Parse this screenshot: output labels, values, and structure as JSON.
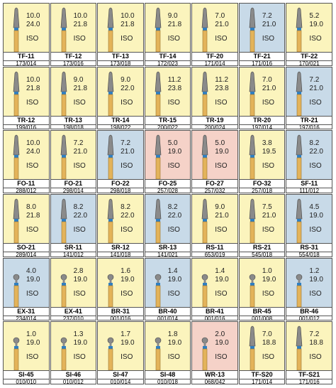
{
  "iso_label": "ISO",
  "rows": [
    [
      {
        "name": "TF-11",
        "d1": "10.0",
        "d2": "24.0",
        "code": "173/014",
        "bg": "yellow"
      },
      {
        "name": "TF-12",
        "d1": "10.0",
        "d2": "21.8",
        "code": "173/016",
        "bg": "yellow"
      },
      {
        "name": "TF-13",
        "d1": "10.0",
        "d2": "21.8",
        "code": "173/018",
        "bg": "yellow"
      },
      {
        "name": "TF-14",
        "d1": "9.0",
        "d2": "21.8",
        "code": "172/023",
        "bg": "yellow"
      },
      {
        "name": "TF-20",
        "d1": "7.0",
        "d2": "21.0",
        "code": "171/014",
        "bg": "yellow"
      },
      {
        "name": "TF-21",
        "d1": "7.2",
        "d2": "21.0",
        "code": "171/016",
        "bg": "blue"
      },
      {
        "name": "TF-22",
        "d1": "5.2",
        "d2": "19.0",
        "code": "170/021",
        "bg": "yellow"
      }
    ],
    [
      {
        "name": "TR-12",
        "d1": "10.0",
        "d2": "21.8",
        "code": "199/016",
        "bg": "yellow"
      },
      {
        "name": "TR-13",
        "d1": "9.0",
        "d2": "21.8",
        "code": "198/018",
        "bg": "yellow"
      },
      {
        "name": "TR-14",
        "d1": "9.0",
        "d2": "22.0",
        "code": "198/022",
        "bg": "yellow"
      },
      {
        "name": "TR-15",
        "d1": "11.2",
        "d2": "23.8",
        "code": "200/022",
        "bg": "yellow"
      },
      {
        "name": "TR-19",
        "d1": "11.2",
        "d2": "23.8",
        "code": "200/024",
        "bg": "yellow"
      },
      {
        "name": "TR-20",
        "d1": "7.0",
        "d2": "21.0",
        "code": "197/014",
        "bg": "yellow"
      },
      {
        "name": "TR-21",
        "d1": "7.2",
        "d2": "21.0",
        "code": "197/016",
        "bg": "blue"
      }
    ],
    [
      {
        "name": "FO-11",
        "d1": "10.0",
        "d2": "24.0",
        "code": "288/012",
        "bg": "yellow"
      },
      {
        "name": "FO-21",
        "d1": "7.2",
        "d2": "21.0",
        "code": "298/014",
        "bg": "yellow"
      },
      {
        "name": "FO-22",
        "d1": "7.2",
        "d2": "21.0",
        "code": "298/018",
        "bg": "blue"
      },
      {
        "name": "FO-25",
        "d1": "5.0",
        "d2": "19.0",
        "code": "257/028",
        "bg": "pink"
      },
      {
        "name": "FO-27",
        "d1": "5.0",
        "d2": "19.0",
        "code": "257/032",
        "bg": "pink"
      },
      {
        "name": "FO-32",
        "d1": "3.8",
        "d2": "19.5",
        "code": "257/018",
        "bg": "yellow"
      },
      {
        "name": "SF-11",
        "d1": "8.2",
        "d2": "22.0",
        "code": "111/012",
        "bg": "blue"
      }
    ],
    [
      {
        "name": "SO-21",
        "d1": "8.0",
        "d2": "21.8",
        "code": "289/014",
        "bg": "yellow"
      },
      {
        "name": "SR-11",
        "d1": "8.2",
        "d2": "22.0",
        "code": "141/012",
        "bg": "blue"
      },
      {
        "name": "SR-12",
        "d1": "8.2",
        "d2": "22.0",
        "code": "141/018",
        "bg": "yellow"
      },
      {
        "name": "SR-13",
        "d1": "8.2",
        "d2": "22.0",
        "code": "141/021",
        "bg": "blue"
      },
      {
        "name": "RS-11",
        "d1": "9.0",
        "d2": "21.0",
        "code": "653/019",
        "bg": "yellow"
      },
      {
        "name": "RS-21",
        "d1": "7.5",
        "d2": "21.0",
        "code": "545/018",
        "bg": "yellow"
      },
      {
        "name": "RS-31",
        "d1": "4.5",
        "d2": "19.0",
        "code": "554/018",
        "bg": "blue"
      }
    ],
    [
      {
        "name": "EX-31",
        "d1": "4.0",
        "d2": "19.0",
        "code": "234/014",
        "bg": "blue"
      },
      {
        "name": "EX-41",
        "d1": "2.8",
        "d2": "19.0",
        "code": "237/010",
        "bg": "yellow"
      },
      {
        "name": "BR-31",
        "d1": "1.6",
        "d2": "19.0",
        "code": "001/016",
        "bg": "yellow"
      },
      {
        "name": "BR-40",
        "d1": "1.4",
        "d2": "19.0",
        "code": "001/014",
        "bg": "blue"
      },
      {
        "name": "BR-41",
        "d1": "1.4",
        "d2": "19.0",
        "code": "001/016",
        "bg": "yellow"
      },
      {
        "name": "BR-45",
        "d1": "1.0",
        "d2": "19.0",
        "code": "001/008",
        "bg": "yellow"
      },
      {
        "name": "BR-46",
        "d1": "1.2",
        "d2": "19.0",
        "code": "001/012",
        "bg": "blue"
      }
    ],
    [
      {
        "name": "SI-45",
        "d1": "1.0",
        "d2": "19.0",
        "code": "010/010",
        "bg": "yellow"
      },
      {
        "name": "SI-46",
        "d1": "1.3",
        "d2": "19.0",
        "code": "010/012",
        "bg": "yellow"
      },
      {
        "name": "SI-47",
        "d1": "1.7",
        "d2": "19.0",
        "code": "010/014",
        "bg": "yellow"
      },
      {
        "name": "SI-48",
        "d1": "1.8",
        "d2": "19.0",
        "code": "010/018",
        "bg": "yellow"
      },
      {
        "name": "WR-13",
        "d1": "2.0",
        "d2": "19.0",
        "code": "068/042",
        "bg": "pink"
      },
      {
        "name": "TF-S20",
        "d1": "7.0",
        "d2": "18.8",
        "code": "171/014",
        "bg": "yellow"
      },
      {
        "name": "TF-S21",
        "d1": "7.2",
        "d2": "18.8",
        "code": "171/016",
        "bg": "yellow"
      }
    ]
  ]
}
